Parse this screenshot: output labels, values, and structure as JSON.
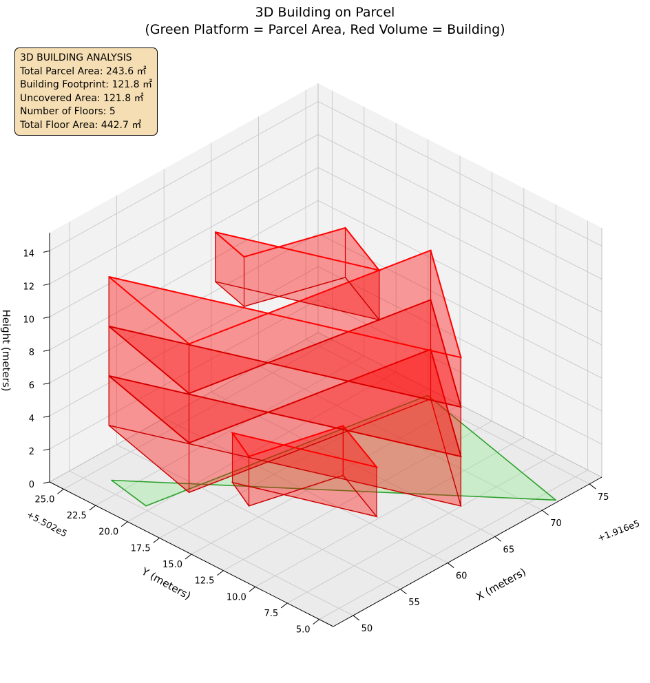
{
  "chart_data": {
    "type": "3d-box",
    "title": "3D Building on Parcel",
    "subtitle": "(Green Platform = Parcel Area, Red Volume = Building)",
    "xlabel": "X (meters)",
    "ylabel": "Y (meters)",
    "zlabel": "Height (meters)",
    "x_offset_label": "+1.916e5",
    "y_offset_label": "+5.502e5",
    "x_ticks": [
      "50",
      "55",
      "60",
      "65",
      "70",
      "75"
    ],
    "y_ticks": [
      "5.0",
      "7.5",
      "10.0",
      "12.5",
      "15.0",
      "17.5",
      "20.0",
      "22.5",
      "25.0"
    ],
    "z_ticks": [
      "0",
      "2",
      "4",
      "6",
      "8",
      "10",
      "12",
      "14"
    ],
    "xlim": [
      47.9,
      76.3
    ],
    "ylim": [
      3.9,
      26.1
    ],
    "zlim": [
      0,
      15.1
    ],
    "grid": true,
    "parcel": {
      "color": "#2ca02c",
      "fill": "#90ee90",
      "polygon": [
        [
          50.4,
          20.4
        ],
        [
          75.6,
          17.0
        ],
        [
          71.7,
          4.1
        ],
        [
          51.2,
          23.7
        ]
      ]
    },
    "building": {
      "color": "#ff0000",
      "edge": "#cc0000",
      "footprint": [
        [
          55.6,
          16.2
        ],
        [
          63.4,
          14.6
        ],
        [
          61.0,
          10.2
        ],
        [
          57.1,
          18.6
        ]
      ],
      "floors": [
        {
          "z0": 0.0,
          "z1": 3.0,
          "poly": [
            [
              55.6,
              16.2
            ],
            [
              63.4,
              14.6
            ],
            [
              61.0,
              10.2
            ],
            [
              57.1,
              18.6
            ]
          ]
        },
        {
          "z0": 3.0,
          "z1": 6.0,
          "poly": [
            [
              49.0,
              16.0
            ],
            [
              70.5,
              13.0
            ],
            [
              61.4,
              3.9
            ],
            [
              51.6,
              24.2
            ]
          ]
        },
        {
          "z0": 6.0,
          "z1": 9.0,
          "poly": [
            [
              49.0,
              16.0
            ],
            [
              70.5,
              13.0
            ],
            [
              61.4,
              3.9
            ],
            [
              51.6,
              24.2
            ]
          ]
        },
        {
          "z0": 9.0,
          "z1": 12.0,
          "poly": [
            [
              49.0,
              16.0
            ],
            [
              70.5,
              13.0
            ],
            [
              61.4,
              3.9
            ],
            [
              51.6,
              24.2
            ]
          ]
        },
        {
          "z0": 12.0,
          "z1": 15.0,
          "poly": [
            [
              55.5,
              16.5
            ],
            [
              63.5,
              14.5
            ],
            [
              61.0,
              10.0
            ],
            [
              56.5,
              19.5
            ]
          ]
        }
      ]
    }
  },
  "info": {
    "heading": "3D BUILDING ANALYSIS",
    "lines": [
      "Total Parcel Area: 243.6 ㎡",
      "Building Footprint: 121.8 ㎡",
      "Uncovered Area: 121.8 ㎡",
      "Number of Floors: 5",
      "Total Floor Area: 442.7 ㎡"
    ]
  }
}
